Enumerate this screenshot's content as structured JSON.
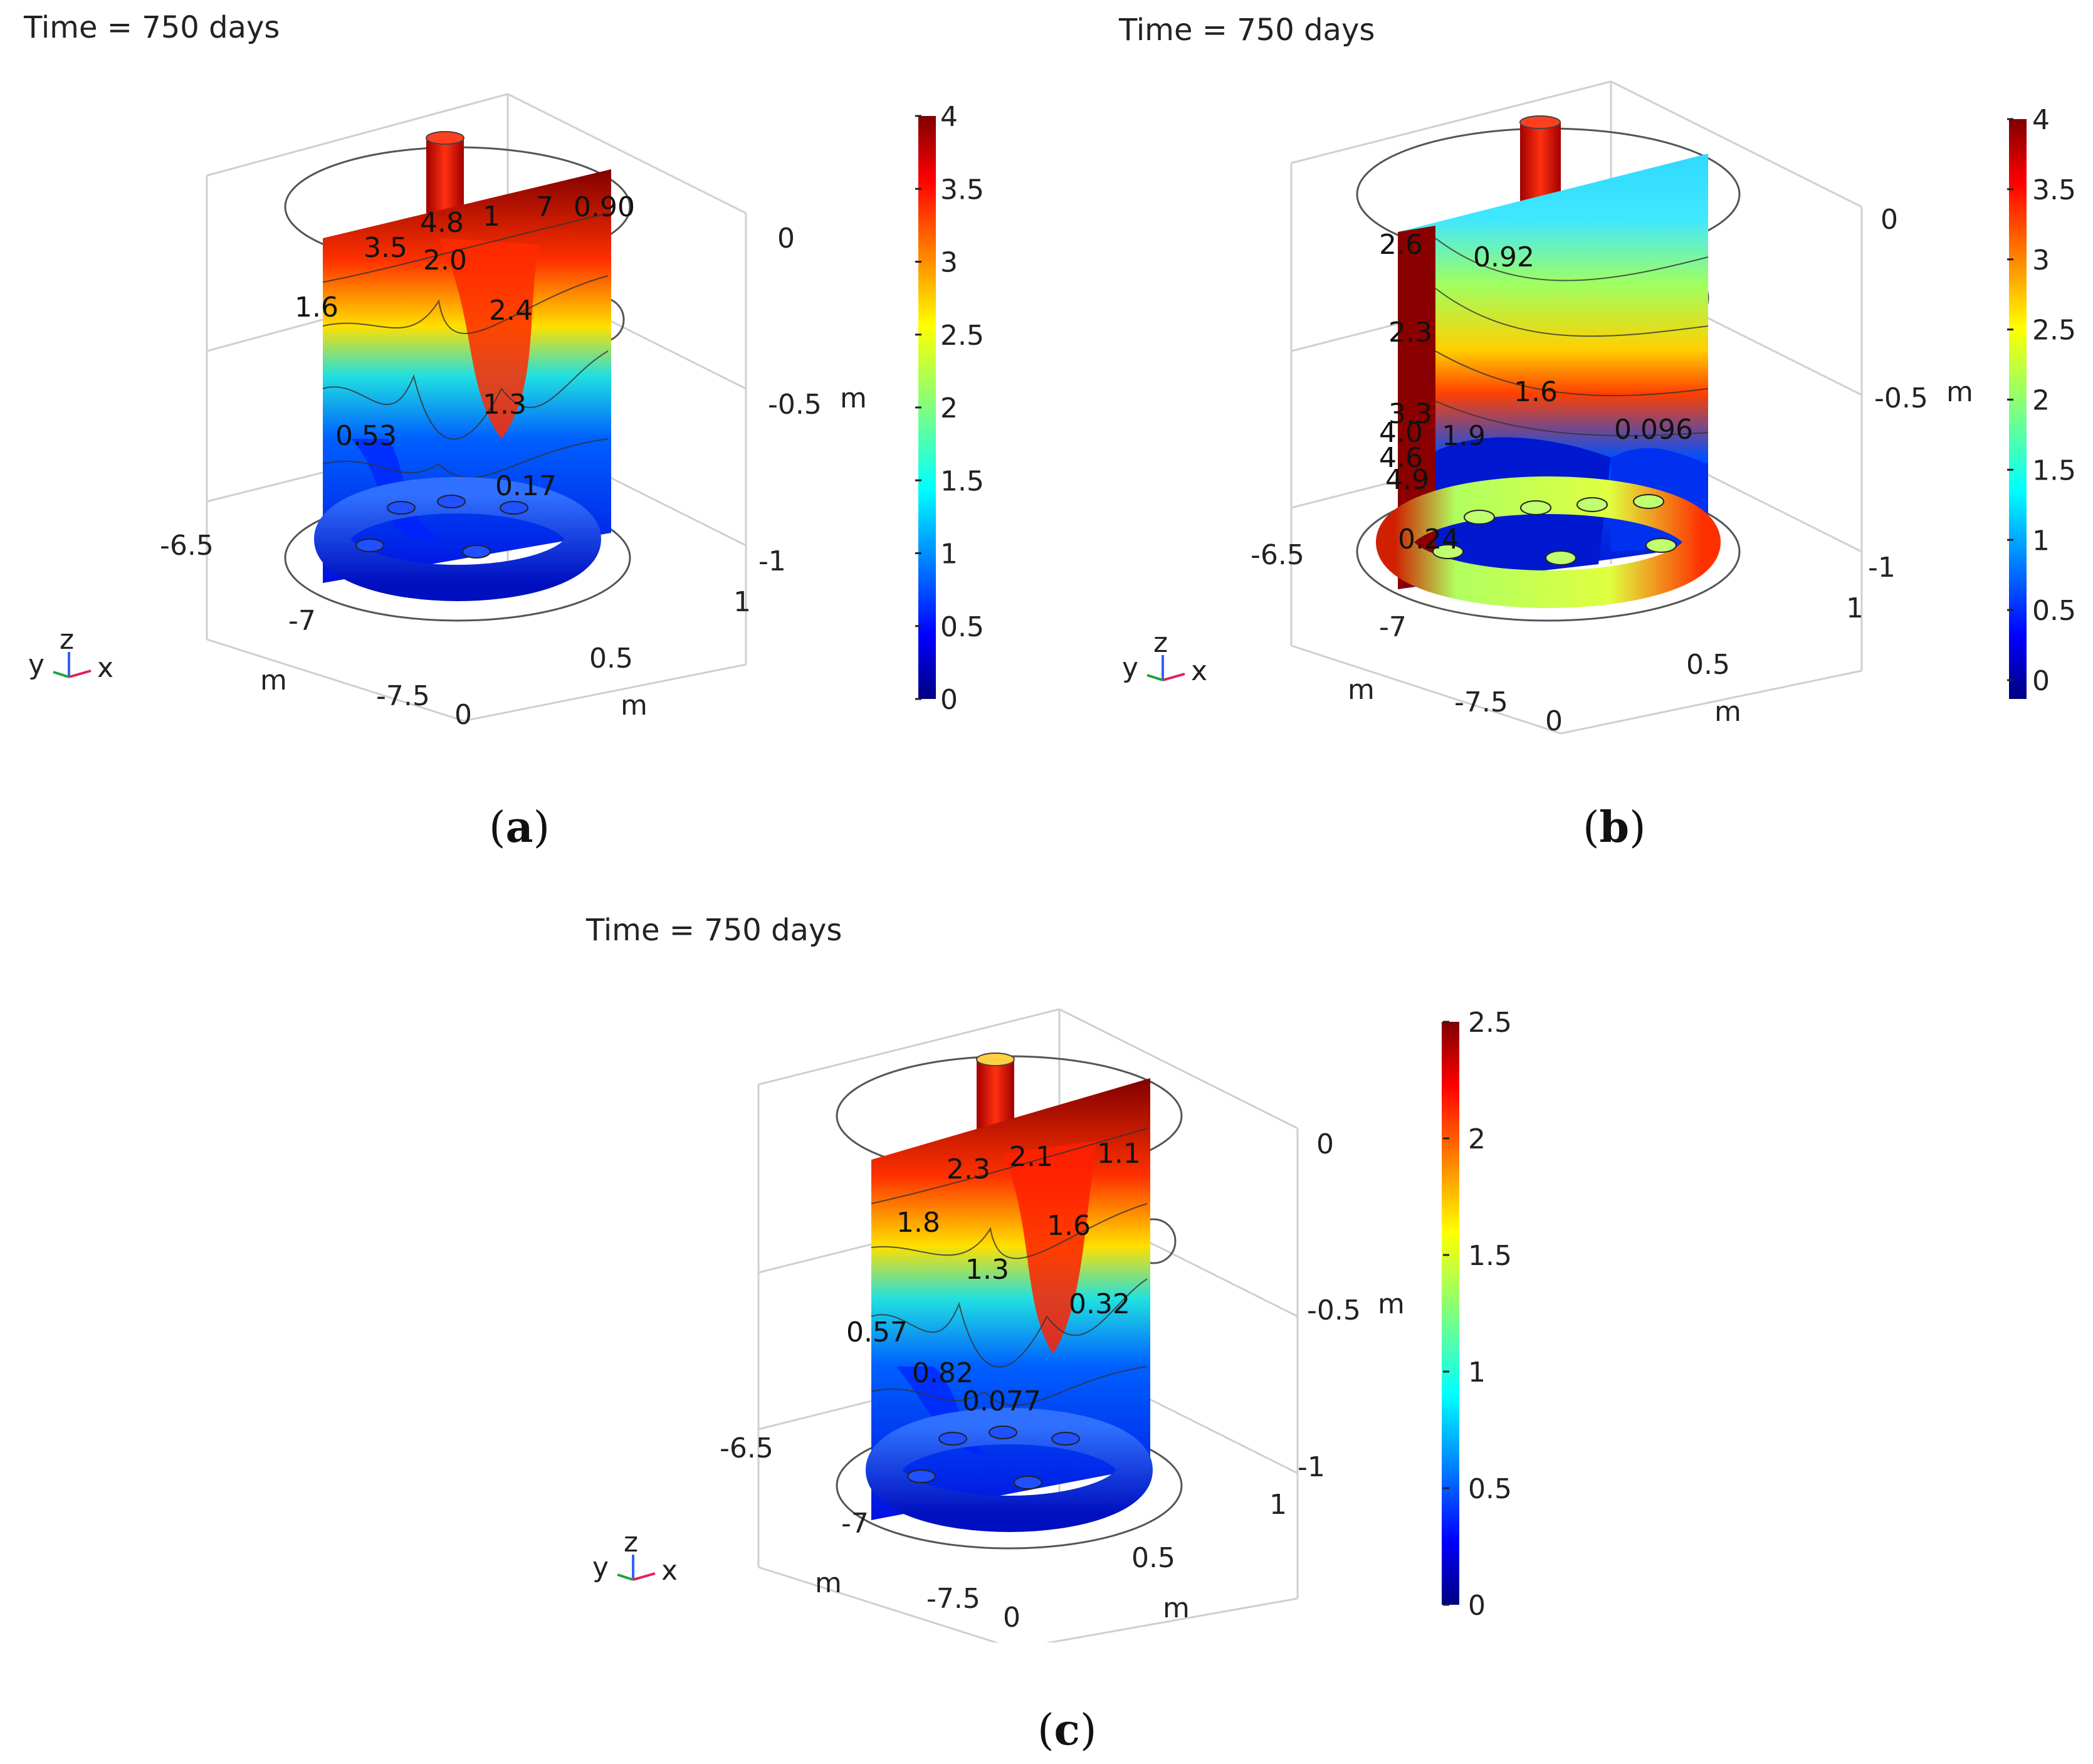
{
  "panels": [
    {
      "id": "a",
      "title": "Time = 750 days",
      "letter": "a",
      "colorbar": {
        "ticks": [
          "4",
          "3.5",
          "3",
          "2.5",
          "2",
          "1.5",
          "1",
          "0.5",
          "0"
        ]
      },
      "contour_labels": [
        "3.5",
        "4.8",
        "1",
        "7",
        "0.90",
        "2.0",
        "1.6",
        "2.4",
        "1.3",
        "0.53",
        "0.17"
      ],
      "axes": {
        "z_ticks": [
          "0",
          "-0.5",
          "-1"
        ],
        "z_unit": "m",
        "y_ticks": [
          "-6.5",
          "-7",
          "-7.5"
        ],
        "y_unit": "m",
        "x_ticks": [
          "0",
          "0.5",
          "1"
        ],
        "x_unit": "m"
      },
      "triad": {
        "y": "y",
        "z": "z",
        "x": "x"
      }
    },
    {
      "id": "b",
      "title": "Time = 750 days",
      "letter": "b",
      "colorbar": {
        "ticks": [
          "4",
          "3.5",
          "3",
          "2.5",
          "2",
          "1.5",
          "1",
          "0.5",
          "0"
        ]
      },
      "contour_labels": [
        "2.6",
        "0.92",
        "2.3",
        "1.6",
        "3.3",
        "4.0",
        "1.9",
        "0.096",
        "4.6",
        "4.9",
        "0.24"
      ],
      "axes": {
        "z_ticks": [
          "0",
          "-0.5",
          "-1"
        ],
        "z_unit": "m",
        "y_ticks": [
          "-6.5",
          "-7",
          "-7.5"
        ],
        "y_unit": "m",
        "x_ticks": [
          "0",
          "0.5",
          "1"
        ],
        "x_unit": "m"
      },
      "triad": {
        "y": "y",
        "z": "z",
        "x": "x"
      }
    },
    {
      "id": "c",
      "title": "Time = 750 days",
      "letter": "c",
      "colorbar": {
        "ticks": [
          "2.5",
          "2",
          "1.5",
          "1",
          "0.5",
          "0"
        ]
      },
      "contour_labels": [
        "2.3",
        "2.1",
        "1.1",
        "1.8",
        "1.6",
        "1.3",
        "0.32",
        "0.57",
        "0.82",
        "0.077"
      ],
      "axes": {
        "z_ticks": [
          "0",
          "-0.5",
          "-1"
        ],
        "z_unit": "m",
        "y_ticks": [
          "-6.5",
          "-7",
          "-7.5"
        ],
        "y_unit": "m",
        "x_ticks": [
          "0",
          "0.5",
          "1"
        ],
        "x_unit": "m"
      },
      "triad": {
        "y": "y",
        "z": "z",
        "x": "x"
      }
    }
  ],
  "colors": {
    "jet": [
      "#00007f",
      "#0000ff",
      "#007fff",
      "#00ffff",
      "#7fff7f",
      "#ffff00",
      "#ff7f00",
      "#ff0000",
      "#7f0000"
    ]
  }
}
